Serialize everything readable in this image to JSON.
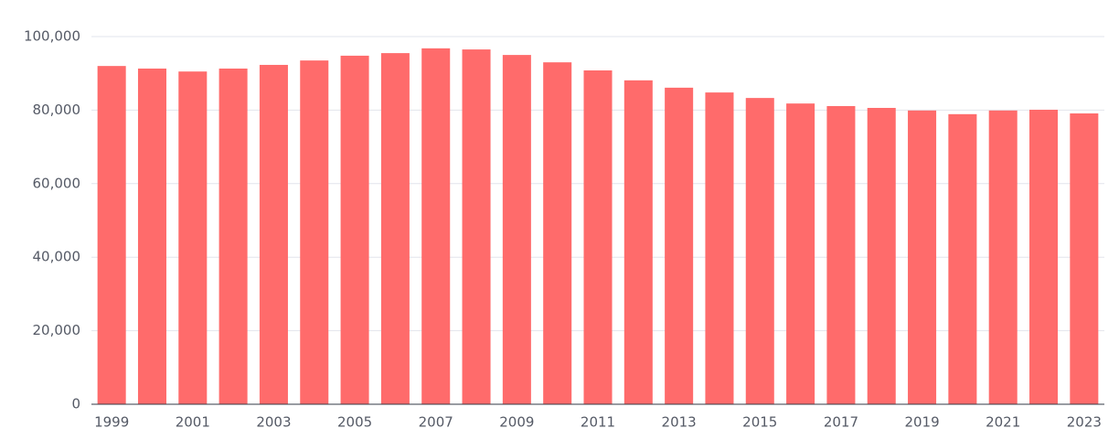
{
  "chart_data": {
    "type": "bar",
    "categories": [
      "1999",
      null,
      "2001",
      null,
      "2003",
      null,
      "2005",
      null,
      "2007",
      null,
      "2009",
      null,
      "2011",
      null,
      "2013",
      null,
      "2015",
      null,
      "2017",
      null,
      "2019",
      null,
      "2021",
      null,
      "2023"
    ],
    "values": [
      92000,
      91300,
      90500,
      91300,
      92300,
      93500,
      94800,
      95500,
      96800,
      96500,
      95000,
      93000,
      90800,
      88100,
      86100,
      84800,
      83300,
      81800,
      81100,
      80600,
      79900,
      78900,
      79900,
      80100,
      79100
    ],
    "color": "#ff6b6b",
    "ylim": [
      0,
      100000
    ],
    "yticks": [
      0,
      {
        "value": 20000,
        "label": "20,000"
      },
      {
        "value": 40000,
        "label": "40,000"
      },
      {
        "value": 60000,
        "label": "60,000"
      },
      {
        "value": 80000,
        "label": "80,000"
      },
      {
        "value": 100000,
        "label": "100,000"
      }
    ],
    "grid": true
  }
}
